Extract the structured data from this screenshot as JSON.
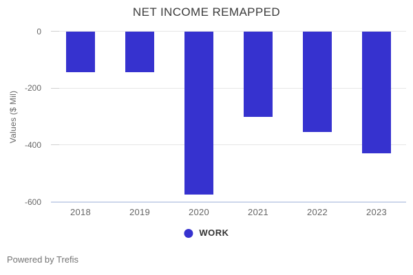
{
  "chart_data": {
    "type": "bar",
    "title": "NET INCOME REMAPPED",
    "ylabel": "Values ($ Mil)",
    "xlabel": "",
    "categories": [
      "2018",
      "2019",
      "2020",
      "2021",
      "2022",
      "2023"
    ],
    "series": [
      {
        "name": "WORK",
        "values": [
          -145,
          -145,
          -575,
          -300,
          -355,
          -430
        ]
      }
    ],
    "ylim": [
      -600,
      0
    ],
    "yticks": [
      0,
      -200,
      -400,
      -600
    ],
    "ytick_labels": [
      "0",
      "-200",
      "-400",
      "-600"
    ],
    "grid": true,
    "legend_position": "bottom"
  },
  "footer": {
    "text": "Powered by Trefis"
  },
  "colors": {
    "accent": "#3632cf",
    "title_text": "#3b3b3b",
    "axis_label_text": "#666666",
    "gridline": "#e6e6e6",
    "axis_line": "#ccd6eb"
  }
}
